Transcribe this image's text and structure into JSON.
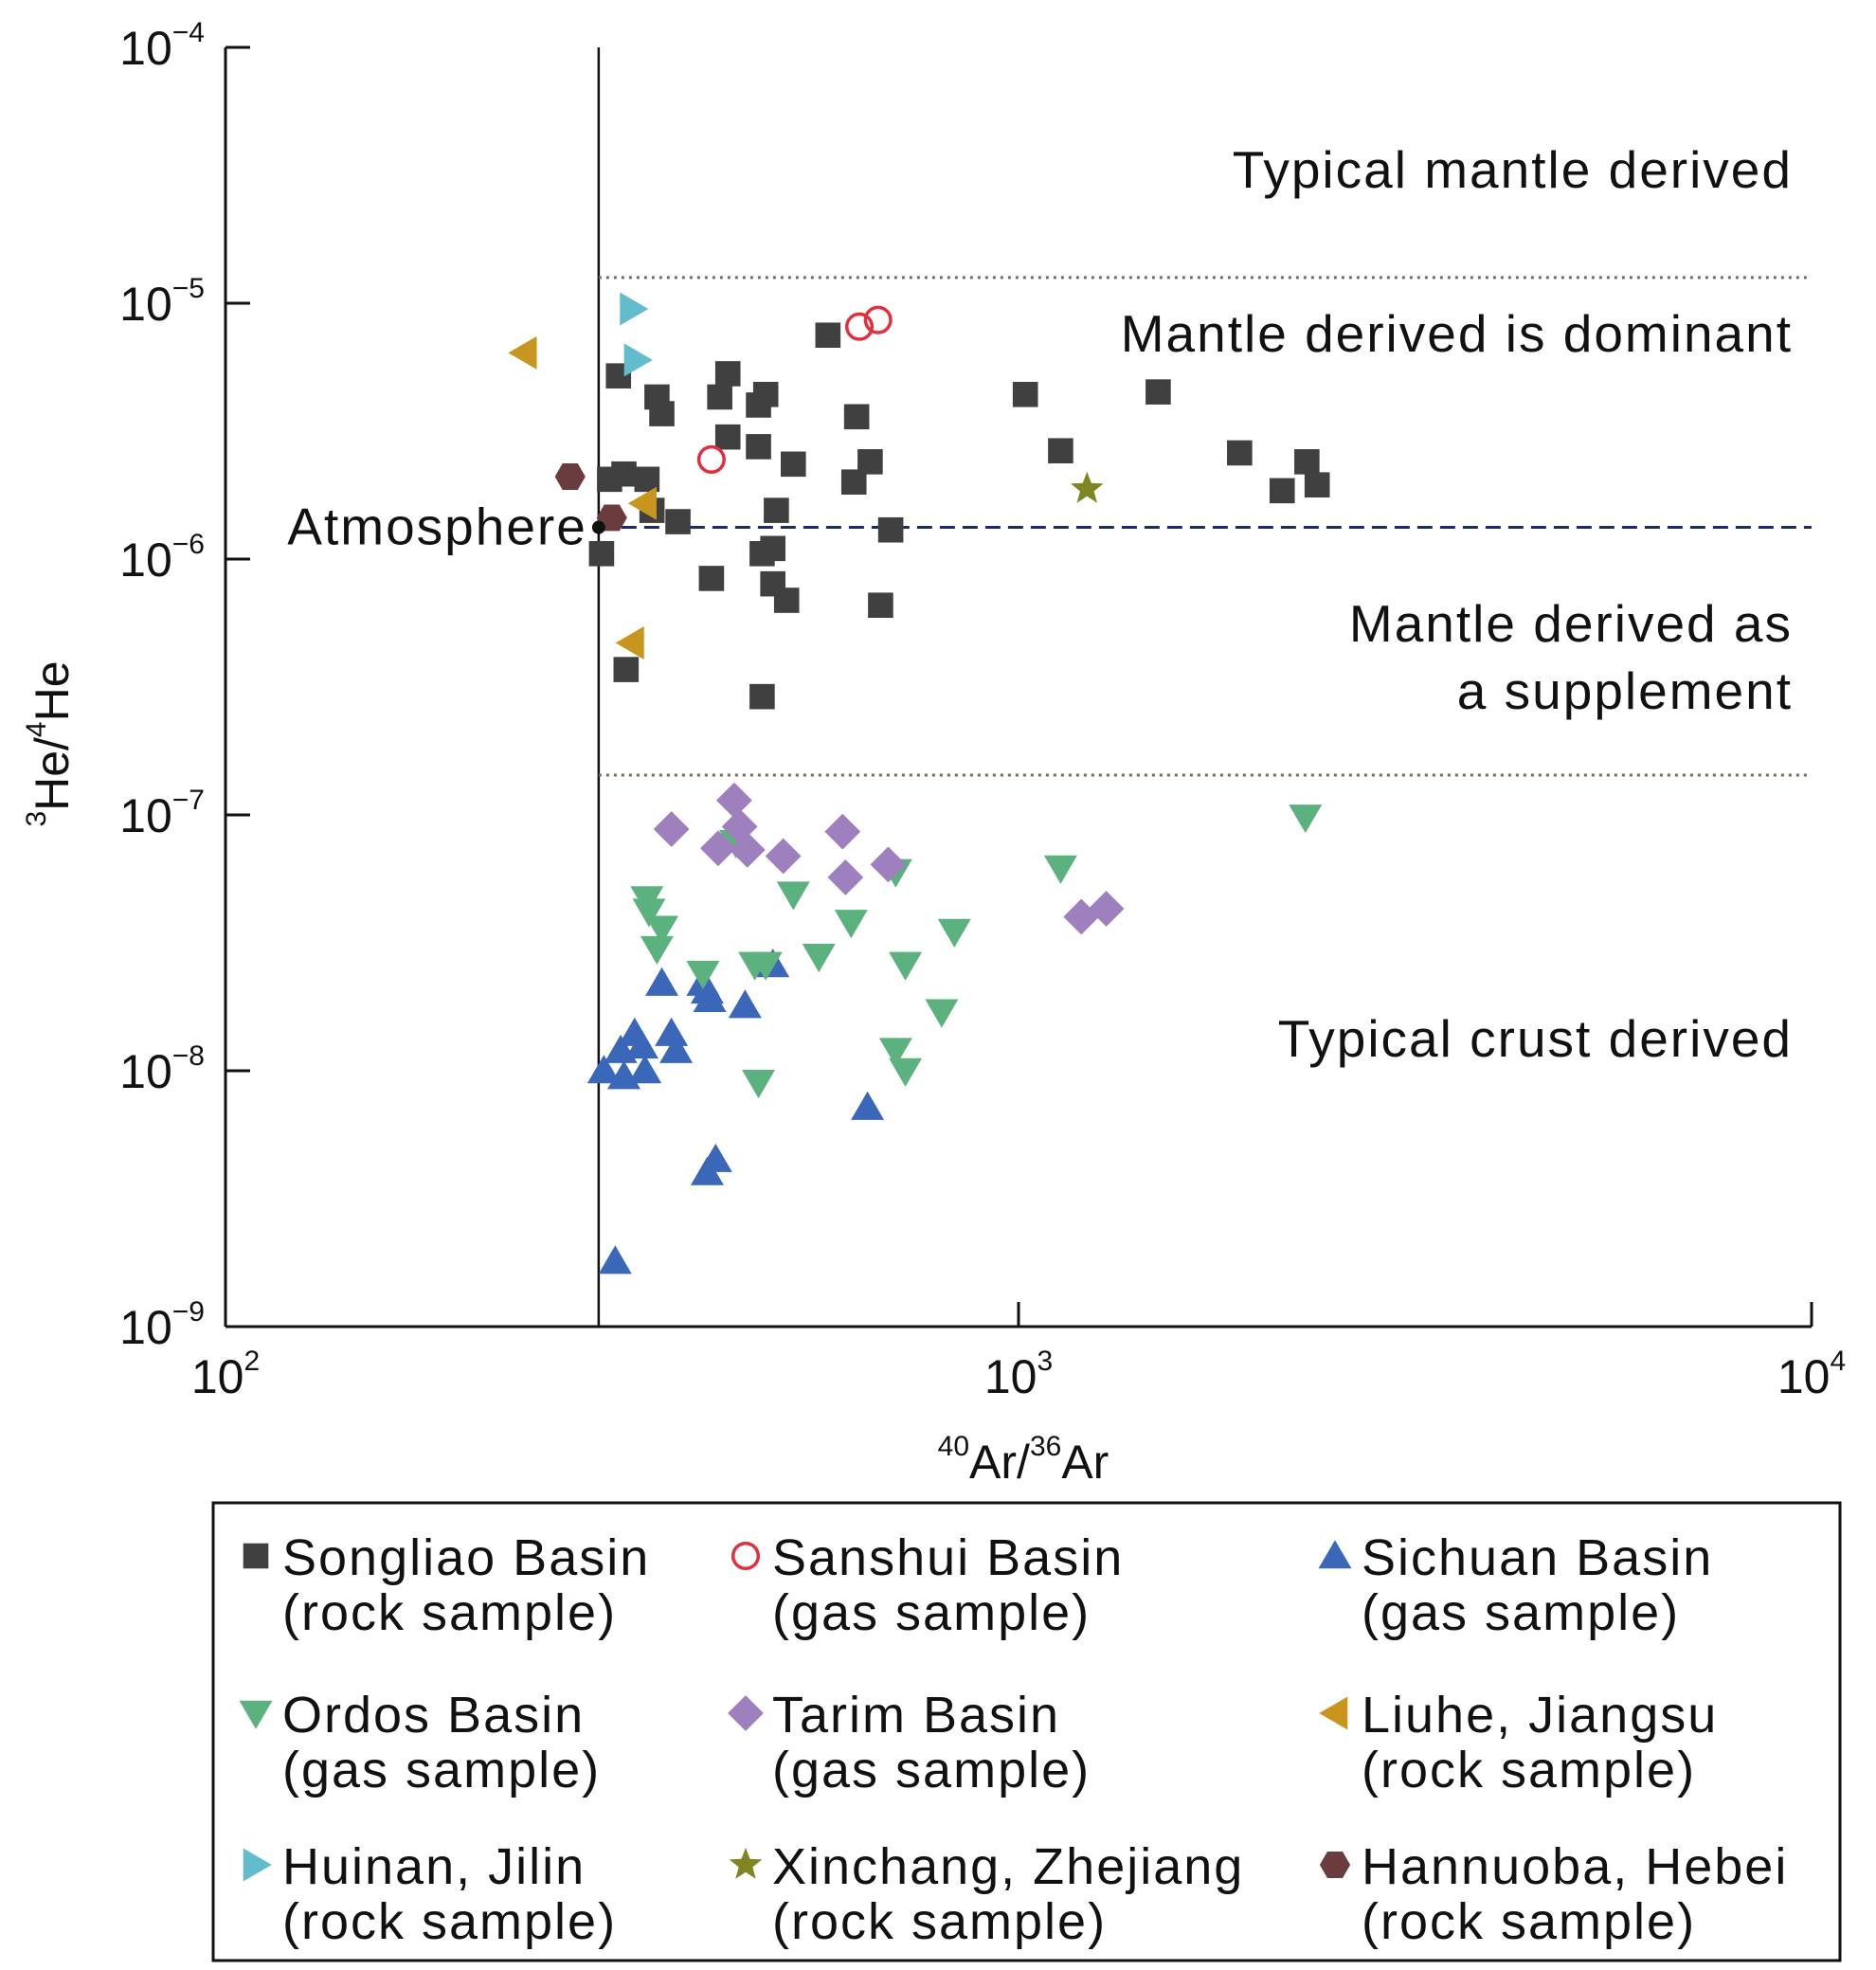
{
  "chart_data": {
    "type": "scatter",
    "xscale": "log",
    "yscale": "log",
    "xlim": [
      100,
      10000
    ],
    "ylim": [
      1e-09,
      0.0001
    ],
    "x_ticks": [
      {
        "value": 100,
        "base": "10",
        "exp": "2"
      },
      {
        "value": 1000,
        "base": "10",
        "exp": "3"
      },
      {
        "value": 10000,
        "base": "10",
        "exp": "4"
      }
    ],
    "y_ticks": [
      {
        "value": 0.0001,
        "base": "10",
        "exp": "−4"
      },
      {
        "value": 1e-05,
        "base": "10",
        "exp": "−5"
      },
      {
        "value": 1e-06,
        "base": "10",
        "exp": "−6"
      },
      {
        "value": 1e-07,
        "base": "10",
        "exp": "−7"
      },
      {
        "value": 1e-08,
        "base": "10",
        "exp": "−8"
      },
      {
        "value": 1e-09,
        "base": "10",
        "exp": "−9"
      }
    ],
    "xlabel": {
      "sup1": "40",
      "text1": "Ar/",
      "sup2": "36",
      "text2": "Ar"
    },
    "ylabel": {
      "sup1": "3",
      "text1": "He/",
      "sup2": "4",
      "text2": "He"
    },
    "atmosphere": {
      "label": "Atmosphere",
      "x": 295.5,
      "y": 1.33e-06
    },
    "reference_lines": {
      "vertical_x": 295.5,
      "atmosphere_y": 1.33e-06,
      "upper_dotted_y": 1.26e-05,
      "lower_dotted_y": 1.43e-07
    },
    "regions": {
      "typical_mantle": "Typical mantle derived",
      "mantle_dominant": "Mantle derived is dominant",
      "supplement_line1": "Mantle derived as",
      "supplement_line2": "a supplement",
      "typical_crust": "Typical crust derived"
    },
    "series": [
      {
        "name": "Songliao Basin",
        "name2": "(rock sample)",
        "marker": "square",
        "color": "#404040",
        "filled": true,
        "points": [
          [
            313,
            5.2e-06
          ],
          [
            350,
            4.3e-06
          ],
          [
            355,
            3.7e-06
          ],
          [
            372,
            1.4e-06
          ],
          [
            345,
            1.55e-06
          ],
          [
            340,
            2.05e-06
          ],
          [
            318,
            2.15e-06
          ],
          [
            305,
            2.05e-06
          ],
          [
            298,
            1.05e-06
          ],
          [
            320,
            3.7e-07
          ],
          [
            420,
            4.3e-06
          ],
          [
            430,
            5.3e-06
          ],
          [
            430,
            3e-06
          ],
          [
            410,
            8.4e-07
          ],
          [
            470,
            4e-06
          ],
          [
            480,
            4.4e-06
          ],
          [
            470,
            2.75e-06
          ],
          [
            475,
            1.05e-06
          ],
          [
            490,
            1.1e-06
          ],
          [
            495,
            1.55e-06
          ],
          [
            490,
            8e-07
          ],
          [
            510,
            6.9e-07
          ],
          [
            475,
            2.9e-07
          ],
          [
            520,
            2.35e-06
          ],
          [
            575,
            7.5e-06
          ],
          [
            625,
            3.6e-06
          ],
          [
            620,
            2e-06
          ],
          [
            650,
            2.4e-06
          ],
          [
            670,
            6.6e-07
          ],
          [
            690,
            1.3e-06
          ],
          [
            1020,
            4.4e-06
          ],
          [
            1130,
            2.65e-06
          ],
          [
            1500,
            4.5e-06
          ],
          [
            1900,
            2.6e-06
          ],
          [
            2150,
            1.85e-06
          ],
          [
            2310,
            2.4e-06
          ],
          [
            2380,
            1.95e-06
          ]
        ]
      },
      {
        "name": "Sanshui Basin",
        "name2": "(gas sample)",
        "marker": "circle",
        "color": "#e0303e",
        "filled": false,
        "points": [
          [
            410,
            2.45e-06
          ],
          [
            630,
            8.1e-06
          ],
          [
            665,
            8.6e-06
          ]
        ]
      },
      {
        "name": "Sichuan Basin",
        "name2": "(gas sample)",
        "marker": "triangle-up",
        "color": "#3a67b8",
        "filled": true,
        "points": [
          [
            300,
            1e-08
          ],
          [
            310,
            1.8e-09
          ],
          [
            315,
            1.2e-08
          ],
          [
            318,
            9.5e-09
          ],
          [
            328,
            1.4e-08
          ],
          [
            335,
            1.25e-08
          ],
          [
            338,
            1e-08
          ],
          [
            355,
            2.2e-08
          ],
          [
            365,
            1.4e-08
          ],
          [
            370,
            1.2e-08
          ],
          [
            400,
            2.2e-08
          ],
          [
            405,
            2.05e-08
          ],
          [
            408,
            1.9e-08
          ],
          [
            405,
            4e-09
          ],
          [
            415,
            4.5e-09
          ],
          [
            452,
            1.8e-08
          ],
          [
            490,
            2.6e-08
          ],
          [
            645,
            7.2e-09
          ]
        ]
      },
      {
        "name": "Ordos Basin",
        "name2": "(gas sample)",
        "marker": "triangle-down",
        "color": "#5cb27e",
        "filled": true,
        "points": [
          [
            340,
            4.7e-08
          ],
          [
            342,
            4.2e-08
          ],
          [
            355,
            3.6e-08
          ],
          [
            350,
            3e-08
          ],
          [
            400,
            2.4e-08
          ],
          [
            440,
            7.8e-08
          ],
          [
            465,
            2.6e-08
          ],
          [
            480,
            2.6e-08
          ],
          [
            470,
            9e-09
          ],
          [
            520,
            4.9e-08
          ],
          [
            560,
            2.8e-08
          ],
          [
            615,
            3.8e-08
          ],
          [
            700,
            1.2e-08
          ],
          [
            700,
            6e-08
          ],
          [
            720,
            1e-08
          ],
          [
            720,
            2.6e-08
          ],
          [
            800,
            1.7e-08
          ],
          [
            830,
            3.5e-08
          ],
          [
            1130,
            6.2e-08
          ],
          [
            2300,
            9.8e-08
          ]
        ]
      },
      {
        "name": "Tarim Basin",
        "name2": "(gas sample)",
        "marker": "diamond",
        "color": "#9d80bd",
        "filled": true,
        "points": [
          [
            365,
            8.8e-08
          ],
          [
            418,
            7.4e-08
          ],
          [
            438,
            1.14e-07
          ],
          [
            445,
            9e-08
          ],
          [
            455,
            7.3e-08
          ],
          [
            505,
            6.9e-08
          ],
          [
            600,
            8.6e-08
          ],
          [
            605,
            5.7e-08
          ],
          [
            685,
            6.4e-08
          ],
          [
            1200,
            4e-08
          ],
          [
            1290,
            4.3e-08
          ]
        ]
      },
      {
        "name": "Liuhe, Jiangsu",
        "name2": "(rock sample)",
        "marker": "triangle-left",
        "color": "#c8961e",
        "filled": true,
        "points": [
          [
            238,
            6.4e-06
          ],
          [
            337,
            1.65e-06
          ],
          [
            325,
            4.7e-07
          ]
        ]
      },
      {
        "name": "Huinan, Jilin",
        "name2": "(rock sample)",
        "marker": "triangle-right",
        "color": "#62bccd",
        "filled": true,
        "points": [
          [
            326,
            9.5e-06
          ],
          [
            330,
            6e-06
          ]
        ]
      },
      {
        "name": "Xinchang, Zhejiang",
        "name2": "(rock sample)",
        "marker": "star",
        "color": "#7e8522",
        "filled": true,
        "points": [
          [
            1220,
            1.88e-06
          ]
        ]
      },
      {
        "name": "Hannuoba, Hebei",
        "name2": "(rock sample)",
        "marker": "hexagon",
        "color": "#6b3c3e",
        "filled": true,
        "points": [
          [
            272,
            2.1e-06
          ],
          [
            307,
            1.45e-06
          ]
        ]
      }
    ]
  }
}
